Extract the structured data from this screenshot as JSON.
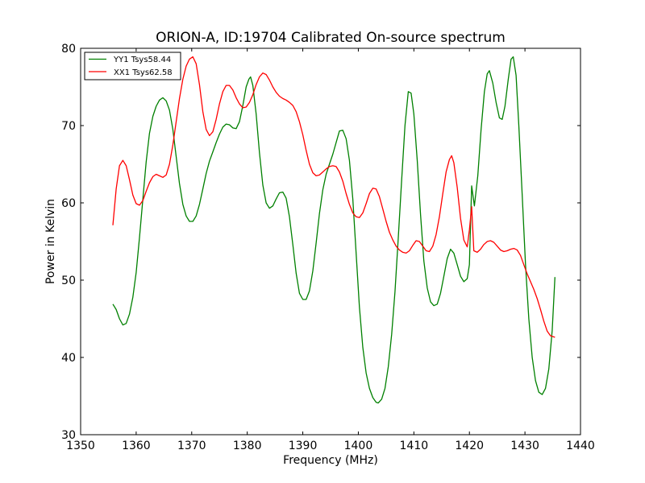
{
  "chart_data": {
    "type": "line",
    "title": "ORION-A, ID:19704 Calibrated On-source spectrum",
    "xlabel": "Frequency (MHz)",
    "ylabel": "Power in Kelvin",
    "xlim": [
      1350,
      1440
    ],
    "ylim": [
      30,
      80
    ],
    "xticks": [
      1350,
      1360,
      1370,
      1380,
      1390,
      1400,
      1410,
      1420,
      1430,
      1440
    ],
    "yticks": [
      30,
      40,
      50,
      60,
      70,
      80
    ],
    "grid": false,
    "legend_position": "top-left",
    "series": [
      {
        "name": "YY1 Tsys58.44",
        "color": "#008000",
        "points": [
          [
            1355.8,
            46.9
          ],
          [
            1356.4,
            46.2
          ],
          [
            1357.0,
            45.0
          ],
          [
            1357.6,
            44.2
          ],
          [
            1358.2,
            44.4
          ],
          [
            1358.8,
            45.6
          ],
          [
            1359.4,
            47.8
          ],
          [
            1360.0,
            51.0
          ],
          [
            1360.6,
            55.5
          ],
          [
            1361.2,
            60.5
          ],
          [
            1361.8,
            65.3
          ],
          [
            1362.4,
            69.0
          ],
          [
            1363.0,
            71.2
          ],
          [
            1363.6,
            72.5
          ],
          [
            1364.2,
            73.3
          ],
          [
            1364.8,
            73.6
          ],
          [
            1365.4,
            73.2
          ],
          [
            1366.0,
            72.0
          ],
          [
            1366.6,
            69.5
          ],
          [
            1367.2,
            66.0
          ],
          [
            1367.8,
            62.5
          ],
          [
            1368.4,
            59.8
          ],
          [
            1369.0,
            58.3
          ],
          [
            1369.6,
            57.6
          ],
          [
            1370.2,
            57.6
          ],
          [
            1370.8,
            58.3
          ],
          [
            1371.4,
            59.8
          ],
          [
            1372.0,
            61.8
          ],
          [
            1372.6,
            63.8
          ],
          [
            1373.2,
            65.4
          ],
          [
            1373.8,
            66.6
          ],
          [
            1374.4,
            67.8
          ],
          [
            1375.0,
            68.9
          ],
          [
            1375.6,
            69.8
          ],
          [
            1376.2,
            70.2
          ],
          [
            1376.8,
            70.1
          ],
          [
            1377.4,
            69.7
          ],
          [
            1378.0,
            69.6
          ],
          [
            1378.6,
            70.5
          ],
          [
            1379.2,
            72.6
          ],
          [
            1379.8,
            75.0
          ],
          [
            1380.3,
            76.0
          ],
          [
            1380.6,
            76.3
          ],
          [
            1381.0,
            75.2
          ],
          [
            1381.6,
            71.5
          ],
          [
            1382.2,
            66.5
          ],
          [
            1382.8,
            62.3
          ],
          [
            1383.4,
            60.0
          ],
          [
            1384.0,
            59.3
          ],
          [
            1384.6,
            59.6
          ],
          [
            1385.2,
            60.5
          ],
          [
            1385.8,
            61.3
          ],
          [
            1386.4,
            61.4
          ],
          [
            1387.0,
            60.6
          ],
          [
            1387.6,
            58.2
          ],
          [
            1388.2,
            54.6
          ],
          [
            1388.8,
            50.9
          ],
          [
            1389.4,
            48.3
          ],
          [
            1390.0,
            47.5
          ],
          [
            1390.6,
            47.5
          ],
          [
            1391.2,
            48.6
          ],
          [
            1391.8,
            51.2
          ],
          [
            1392.4,
            54.8
          ],
          [
            1393.0,
            58.6
          ],
          [
            1393.6,
            61.7
          ],
          [
            1394.2,
            63.7
          ],
          [
            1394.8,
            65.0
          ],
          [
            1395.4,
            66.3
          ],
          [
            1396.0,
            67.8
          ],
          [
            1396.6,
            69.3
          ],
          [
            1397.2,
            69.4
          ],
          [
            1397.8,
            68.3
          ],
          [
            1398.4,
            65.5
          ],
          [
            1399.0,
            60.5
          ],
          [
            1399.6,
            53.5
          ],
          [
            1400.2,
            46.5
          ],
          [
            1400.8,
            41.3
          ],
          [
            1401.4,
            38.0
          ],
          [
            1402.0,
            36.0
          ],
          [
            1402.6,
            34.8
          ],
          [
            1403.2,
            34.2
          ],
          [
            1403.6,
            34.1
          ],
          [
            1404.2,
            34.6
          ],
          [
            1404.8,
            36.0
          ],
          [
            1405.4,
            38.8
          ],
          [
            1406.0,
            43.0
          ],
          [
            1406.6,
            48.5
          ],
          [
            1407.2,
            55.5
          ],
          [
            1407.8,
            63.0
          ],
          [
            1408.4,
            70.0
          ],
          [
            1409.0,
            74.4
          ],
          [
            1409.5,
            74.2
          ],
          [
            1410.0,
            71.5
          ],
          [
            1410.6,
            65.5
          ],
          [
            1411.2,
            58.5
          ],
          [
            1411.8,
            52.5
          ],
          [
            1412.4,
            49.0
          ],
          [
            1413.0,
            47.2
          ],
          [
            1413.6,
            46.7
          ],
          [
            1414.2,
            46.9
          ],
          [
            1414.8,
            48.3
          ],
          [
            1415.4,
            50.5
          ],
          [
            1416.0,
            52.8
          ],
          [
            1416.6,
            54.0
          ],
          [
            1417.2,
            53.5
          ],
          [
            1417.8,
            52.0
          ],
          [
            1418.4,
            50.5
          ],
          [
            1419.0,
            49.8
          ],
          [
            1419.6,
            50.2
          ],
          [
            1420.0,
            52.0
          ],
          [
            1420.4,
            62.2
          ],
          [
            1420.9,
            59.6
          ],
          [
            1421.5,
            63.5
          ],
          [
            1422.1,
            69.5
          ],
          [
            1422.7,
            74.4
          ],
          [
            1423.2,
            76.7
          ],
          [
            1423.6,
            77.1
          ],
          [
            1424.2,
            75.5
          ],
          [
            1424.8,
            73.0
          ],
          [
            1425.4,
            71.0
          ],
          [
            1425.9,
            70.8
          ],
          [
            1426.4,
            72.5
          ],
          [
            1427.0,
            76.0
          ],
          [
            1427.5,
            78.6
          ],
          [
            1427.9,
            78.9
          ],
          [
            1428.4,
            76.5
          ],
          [
            1428.9,
            70.0
          ],
          [
            1429.5,
            61.0
          ],
          [
            1430.1,
            52.0
          ],
          [
            1430.7,
            45.0
          ],
          [
            1431.3,
            40.0
          ],
          [
            1431.9,
            37.0
          ],
          [
            1432.5,
            35.5
          ],
          [
            1433.1,
            35.2
          ],
          [
            1433.7,
            36.0
          ],
          [
            1434.3,
            38.5
          ],
          [
            1434.9,
            43.5
          ],
          [
            1435.4,
            50.4
          ]
        ]
      },
      {
        "name": "XX1 Tsys62.58",
        "color": "#ff0000",
        "points": [
          [
            1355.8,
            57.1
          ],
          [
            1356.4,
            61.8
          ],
          [
            1357.0,
            64.8
          ],
          [
            1357.6,
            65.5
          ],
          [
            1358.2,
            64.8
          ],
          [
            1358.8,
            63.0
          ],
          [
            1359.4,
            61.0
          ],
          [
            1360.0,
            59.9
          ],
          [
            1360.6,
            59.7
          ],
          [
            1361.2,
            60.3
          ],
          [
            1361.8,
            61.5
          ],
          [
            1362.4,
            62.6
          ],
          [
            1363.0,
            63.4
          ],
          [
            1363.6,
            63.7
          ],
          [
            1364.2,
            63.5
          ],
          [
            1364.8,
            63.3
          ],
          [
            1365.4,
            63.6
          ],
          [
            1366.0,
            65.0
          ],
          [
            1366.6,
            67.5
          ],
          [
            1367.2,
            70.5
          ],
          [
            1367.8,
            73.5
          ],
          [
            1368.4,
            76.0
          ],
          [
            1369.0,
            77.7
          ],
          [
            1369.6,
            78.6
          ],
          [
            1370.2,
            78.9
          ],
          [
            1370.8,
            78.0
          ],
          [
            1371.4,
            75.3
          ],
          [
            1372.0,
            71.8
          ],
          [
            1372.6,
            69.5
          ],
          [
            1373.2,
            68.7
          ],
          [
            1373.8,
            69.2
          ],
          [
            1374.4,
            70.8
          ],
          [
            1375.0,
            72.8
          ],
          [
            1375.6,
            74.4
          ],
          [
            1376.2,
            75.2
          ],
          [
            1376.8,
            75.2
          ],
          [
            1377.4,
            74.6
          ],
          [
            1378.0,
            73.6
          ],
          [
            1378.6,
            72.8
          ],
          [
            1379.2,
            72.3
          ],
          [
            1379.8,
            72.4
          ],
          [
            1380.4,
            73.0
          ],
          [
            1381.0,
            74.0
          ],
          [
            1381.6,
            75.3
          ],
          [
            1382.2,
            76.3
          ],
          [
            1382.8,
            76.8
          ],
          [
            1383.4,
            76.6
          ],
          [
            1384.0,
            75.9
          ],
          [
            1384.6,
            75.0
          ],
          [
            1385.2,
            74.3
          ],
          [
            1385.8,
            73.8
          ],
          [
            1386.4,
            73.5
          ],
          [
            1387.0,
            73.3
          ],
          [
            1387.6,
            73.0
          ],
          [
            1388.2,
            72.6
          ],
          [
            1388.8,
            71.8
          ],
          [
            1389.4,
            70.5
          ],
          [
            1390.0,
            68.8
          ],
          [
            1390.6,
            66.8
          ],
          [
            1391.2,
            65.0
          ],
          [
            1391.8,
            63.9
          ],
          [
            1392.4,
            63.5
          ],
          [
            1393.0,
            63.6
          ],
          [
            1393.6,
            64.0
          ],
          [
            1394.2,
            64.4
          ],
          [
            1394.8,
            64.7
          ],
          [
            1395.4,
            64.8
          ],
          [
            1396.0,
            64.7
          ],
          [
            1396.6,
            64.0
          ],
          [
            1397.2,
            62.8
          ],
          [
            1397.8,
            61.2
          ],
          [
            1398.4,
            59.8
          ],
          [
            1399.0,
            58.7
          ],
          [
            1399.6,
            58.2
          ],
          [
            1400.2,
            58.1
          ],
          [
            1400.8,
            58.7
          ],
          [
            1401.4,
            59.9
          ],
          [
            1402.0,
            61.2
          ],
          [
            1402.6,
            61.9
          ],
          [
            1403.2,
            61.8
          ],
          [
            1403.8,
            60.8
          ],
          [
            1404.4,
            59.2
          ],
          [
            1405.0,
            57.6
          ],
          [
            1405.6,
            56.2
          ],
          [
            1406.2,
            55.2
          ],
          [
            1406.8,
            54.4
          ],
          [
            1407.4,
            53.9
          ],
          [
            1408.0,
            53.6
          ],
          [
            1408.6,
            53.5
          ],
          [
            1409.2,
            53.8
          ],
          [
            1409.8,
            54.5
          ],
          [
            1410.4,
            55.1
          ],
          [
            1411.0,
            55.0
          ],
          [
            1411.6,
            54.4
          ],
          [
            1412.2,
            53.8
          ],
          [
            1412.8,
            53.7
          ],
          [
            1413.4,
            54.4
          ],
          [
            1414.0,
            55.9
          ],
          [
            1414.6,
            58.2
          ],
          [
            1415.2,
            61.2
          ],
          [
            1415.8,
            64.0
          ],
          [
            1416.4,
            65.6
          ],
          [
            1416.8,
            66.1
          ],
          [
            1417.2,
            65.2
          ],
          [
            1417.8,
            62.0
          ],
          [
            1418.4,
            58.0
          ],
          [
            1419.0,
            55.2
          ],
          [
            1419.6,
            54.3
          ],
          [
            1420.0,
            56.5
          ],
          [
            1420.4,
            59.5
          ],
          [
            1420.8,
            53.8
          ],
          [
            1421.4,
            53.6
          ],
          [
            1422.0,
            54.0
          ],
          [
            1422.6,
            54.6
          ],
          [
            1423.2,
            55.0
          ],
          [
            1423.8,
            55.1
          ],
          [
            1424.4,
            54.9
          ],
          [
            1425.0,
            54.4
          ],
          [
            1425.6,
            53.9
          ],
          [
            1426.2,
            53.7
          ],
          [
            1426.8,
            53.8
          ],
          [
            1427.4,
            54.0
          ],
          [
            1428.0,
            54.1
          ],
          [
            1428.6,
            53.9
          ],
          [
            1429.2,
            53.2
          ],
          [
            1429.8,
            52.0
          ],
          [
            1430.4,
            50.8
          ],
          [
            1431.0,
            49.8
          ],
          [
            1431.6,
            48.8
          ],
          [
            1432.2,
            47.6
          ],
          [
            1432.8,
            46.2
          ],
          [
            1433.4,
            44.7
          ],
          [
            1434.0,
            43.4
          ],
          [
            1434.6,
            42.8
          ],
          [
            1435.4,
            42.6
          ]
        ]
      }
    ]
  }
}
